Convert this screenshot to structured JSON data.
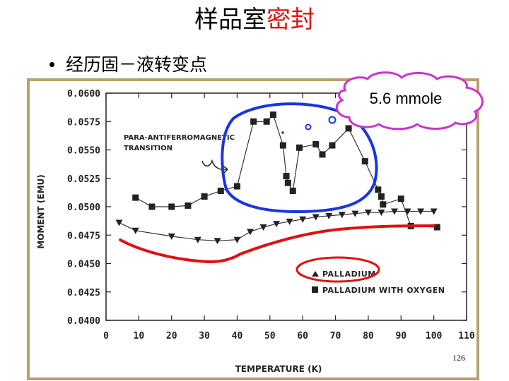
{
  "slide": {
    "title_black": "样品室",
    "title_red": "密封",
    "bullet": "经历固－液转变点",
    "page_number": "126"
  },
  "colors": {
    "accent_red": "#e01010",
    "blue_outline": "#1a35e0",
    "frame": "#b8a06a"
  },
  "annotations": {
    "cloud_label": "5.6 mmole",
    "transition_line1": "PARA-ANTIFERROMAGNETIC",
    "transition_line2": "TRANSITION"
  },
  "chart_data": {
    "type": "line",
    "xlabel": "TEMPERATURE (K)",
    "ylabel": "MOMENT (EMU)",
    "xlim": [
      0,
      110
    ],
    "ylim": [
      0.04,
      0.06
    ],
    "x_ticks": [
      "0",
      "10",
      "20",
      "30",
      "40",
      "50",
      "60",
      "70",
      "80",
      "90",
      "100",
      "110"
    ],
    "y_ticks": [
      "0.0400",
      "0.0425",
      "0.0450",
      "0.0475",
      "0.0500",
      "0.0525",
      "0.0550",
      "0.0575",
      "0.0600"
    ],
    "legend_position": "bottom-center",
    "series": [
      {
        "name": "PALLADIUM",
        "marker": "triangle",
        "points": [
          [
            4,
            0.0486
          ],
          [
            9,
            0.0479
          ],
          [
            20,
            0.0474
          ],
          [
            28,
            0.0471
          ],
          [
            34,
            0.047
          ],
          [
            40,
            0.0471
          ],
          [
            44,
            0.0478
          ],
          [
            48,
            0.0482
          ],
          [
            52,
            0.0485
          ],
          [
            56,
            0.0487
          ],
          [
            60,
            0.0489
          ],
          [
            64,
            0.0491
          ],
          [
            68,
            0.0492
          ],
          [
            72,
            0.0493
          ],
          [
            76,
            0.0494
          ],
          [
            80,
            0.0495
          ],
          [
            84,
            0.0495
          ],
          [
            88,
            0.0496
          ],
          [
            92,
            0.0496
          ],
          [
            96,
            0.0496
          ],
          [
            100,
            0.0496
          ]
        ]
      },
      {
        "name": "PALLADIUM WITH OXYGEN",
        "marker": "square",
        "points": [
          [
            9,
            0.0508
          ],
          [
            14,
            0.05
          ],
          [
            20,
            0.05
          ],
          [
            25,
            0.0501
          ],
          [
            30,
            0.0509
          ],
          [
            35,
            0.0514
          ],
          [
            40,
            0.0518
          ],
          [
            45,
            0.0575
          ],
          [
            49,
            0.0575
          ],
          [
            51,
            0.0581
          ],
          [
            54,
            0.0554
          ],
          [
            55,
            0.0527
          ],
          [
            55.5,
            0.0521
          ],
          [
            57,
            0.0514
          ],
          [
            59,
            0.0552
          ],
          [
            64,
            0.0555
          ],
          [
            66,
            0.0546
          ],
          [
            69,
            0.0554
          ],
          [
            74,
            0.0569
          ],
          [
            79,
            0.054
          ],
          [
            83,
            0.0515
          ],
          [
            84,
            0.0509
          ],
          [
            84.5,
            0.0502
          ],
          [
            90,
            0.0507
          ],
          [
            93,
            0.0483
          ],
          [
            101,
            0.0482
          ]
        ]
      }
    ]
  }
}
